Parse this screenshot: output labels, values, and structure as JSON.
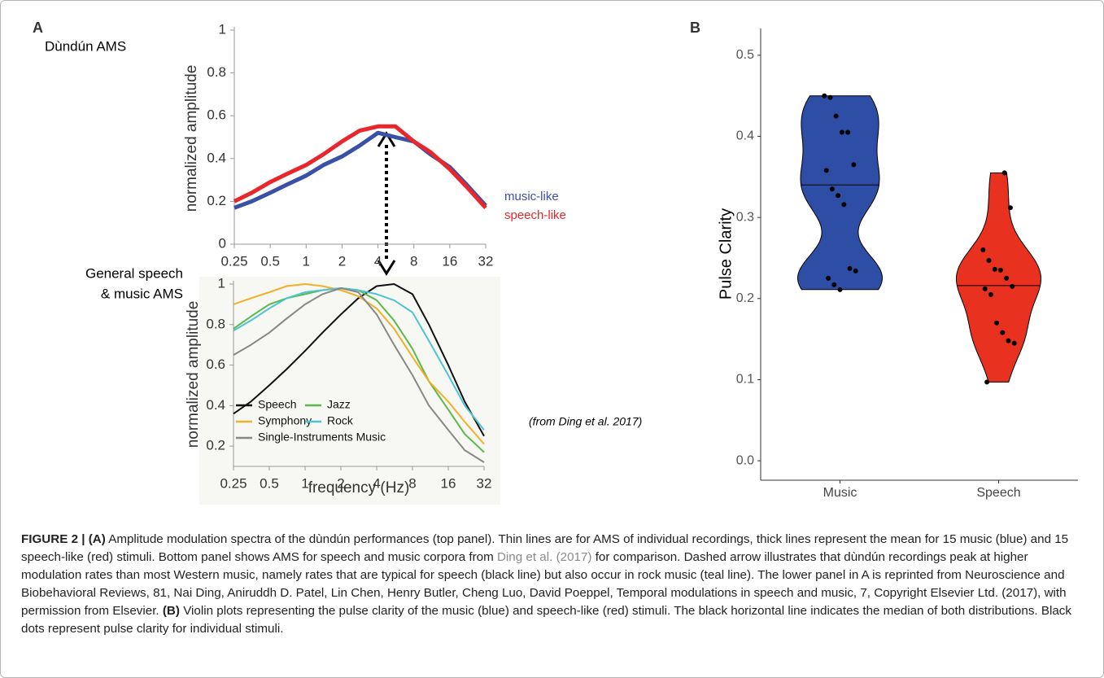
{
  "figure": {
    "panel_labels": [
      "A",
      "B"
    ],
    "caption": [
      {
        "text": "FIGURE 2 | (A)",
        "style": "bold"
      },
      {
        "text": " Amplitude modulation spectra of the dùndún performances (top panel). Thin lines are for AMS of individual recordings, thick lines represent the mean for 15 music (blue) and 15 speech-like (red) stimuli. Bottom panel shows AMS for speech and music corpora from ",
        "style": "normal"
      },
      {
        "text": "Ding et al. (2017)",
        "style": "link"
      },
      {
        "text": " for comparison. Dashed arrow illustrates that dùndún recordings peak at higher modulation rates than most Western music, namely rates that are typical for speech (black line) but also occur in rock music (teal line). The lower panel in A is reprinted from Neuroscience and Biobehavioral Reviews, 81, Nai Ding, Aniruddh D. Patel, Lin Chen, Henry Butler, Cheng Luo, David Poeppel, Temporal modulations in speech and music, 7, Copyright Elsevier Ltd. (2017), with permission from Elsevier. ",
        "style": "normal"
      },
      {
        "text": "(B)",
        "style": "bold"
      },
      {
        "text": " Violin plots representing the pulse clarity of the music (blue) and speech-like (red) stimuli. The black horizontal line indicates the median of both distributions. Black dots represent pulse clarity for individual stimuli.",
        "style": "normal"
      }
    ]
  },
  "chart_data": [
    {
      "type": "line",
      "ylabel": "normalized amplitude",
      "annotations": [
        "Dùndún AMS"
      ],
      "xscale": "log",
      "xlim": [
        0.25,
        32
      ],
      "xticks": [
        0.25,
        0.5,
        1,
        2,
        4,
        8,
        16,
        32
      ],
      "ylim": [
        0,
        1
      ],
      "yticks": [
        0,
        0.2,
        0.4,
        0.6,
        0.8,
        1
      ],
      "legend": "right",
      "x": [
        0.25,
        0.35,
        0.5,
        0.7,
        1,
        1.4,
        2,
        2.8,
        4,
        5.6,
        8,
        11,
        16,
        22,
        32
      ],
      "series": [
        {
          "name": "music-like",
          "color": "#3a4fa6",
          "values": [
            0.17,
            0.2,
            0.24,
            0.28,
            0.32,
            0.37,
            0.41,
            0.46,
            0.52,
            0.5,
            0.48,
            0.42,
            0.36,
            0.28,
            0.18
          ]
        },
        {
          "name": "speech-like",
          "color": "#e8262b",
          "values": [
            0.2,
            0.24,
            0.29,
            0.33,
            0.37,
            0.42,
            0.48,
            0.53,
            0.55,
            0.55,
            0.48,
            0.43,
            0.35,
            0.27,
            0.17
          ]
        }
      ]
    },
    {
      "type": "line",
      "ylabel": "normalized amplitude",
      "xlabel": "frequency (Hz)",
      "annotations": [
        "General speech",
        "& music AMS",
        "(from Ding et al. 2017)"
      ],
      "xscale": "log",
      "xlim": [
        0.25,
        32
      ],
      "xticks": [
        0.25,
        0.5,
        1,
        2,
        4,
        8,
        16,
        32
      ],
      "ylim": [
        0.1,
        1
      ],
      "yticks": [
        0.2,
        0.4,
        0.6,
        0.8,
        1
      ],
      "legend": "lower left",
      "x": [
        0.25,
        0.35,
        0.5,
        0.7,
        1,
        1.4,
        2,
        2.8,
        4,
        5.6,
        8,
        11,
        16,
        22,
        32
      ],
      "series": [
        {
          "name": "Speech",
          "color": "#111111",
          "values": [
            0.36,
            0.42,
            0.5,
            0.58,
            0.67,
            0.76,
            0.85,
            0.93,
            0.99,
            1.0,
            0.95,
            0.8,
            0.6,
            0.42,
            0.25
          ]
        },
        {
          "name": "Jazz",
          "color": "#5cb84a",
          "values": [
            0.78,
            0.84,
            0.9,
            0.93,
            0.95,
            0.97,
            0.98,
            0.97,
            0.92,
            0.82,
            0.68,
            0.52,
            0.38,
            0.26,
            0.17
          ]
        },
        {
          "name": "Symphony",
          "color": "#f0b02a",
          "values": [
            0.9,
            0.93,
            0.96,
            0.99,
            1.0,
            0.99,
            0.97,
            0.94,
            0.88,
            0.78,
            0.64,
            0.52,
            0.42,
            0.32,
            0.21
          ]
        },
        {
          "name": "Rock",
          "color": "#4fc3cf",
          "values": [
            0.77,
            0.82,
            0.88,
            0.93,
            0.96,
            0.97,
            0.98,
            0.97,
            0.95,
            0.92,
            0.86,
            0.72,
            0.55,
            0.4,
            0.28
          ]
        },
        {
          "name": "Single-Instruments Music",
          "color": "#888888",
          "values": [
            0.65,
            0.7,
            0.76,
            0.83,
            0.9,
            0.95,
            0.98,
            0.96,
            0.85,
            0.7,
            0.55,
            0.4,
            0.28,
            0.18,
            0.12
          ]
        }
      ]
    },
    {
      "type": "violin",
      "ylabel": "Pulse Clarity",
      "categories": [
        "Music",
        "Speech"
      ],
      "colors": [
        "#2e4ea6",
        "#e8321f"
      ],
      "ylim": [
        -0.024,
        0.533
      ],
      "yticks": [
        {
          "value": 0,
          "label": "0.0"
        },
        0.1,
        0.2,
        0.3,
        0.4,
        0.5
      ],
      "values": [
        [
          0.45,
          0.448,
          0.425,
          0.405,
          0.405,
          0.365,
          0.358,
          0.335,
          0.327,
          0.316,
          0.237,
          0.234,
          0.225,
          0.217,
          0.211
        ],
        [
          0.355,
          0.312,
          0.26,
          0.247,
          0.236,
          0.235,
          0.225,
          0.215,
          0.212,
          0.205,
          0.17,
          0.158,
          0.148,
          0.145,
          0.097
        ]
      ],
      "medians": [
        0.34,
        0.216
      ]
    }
  ]
}
